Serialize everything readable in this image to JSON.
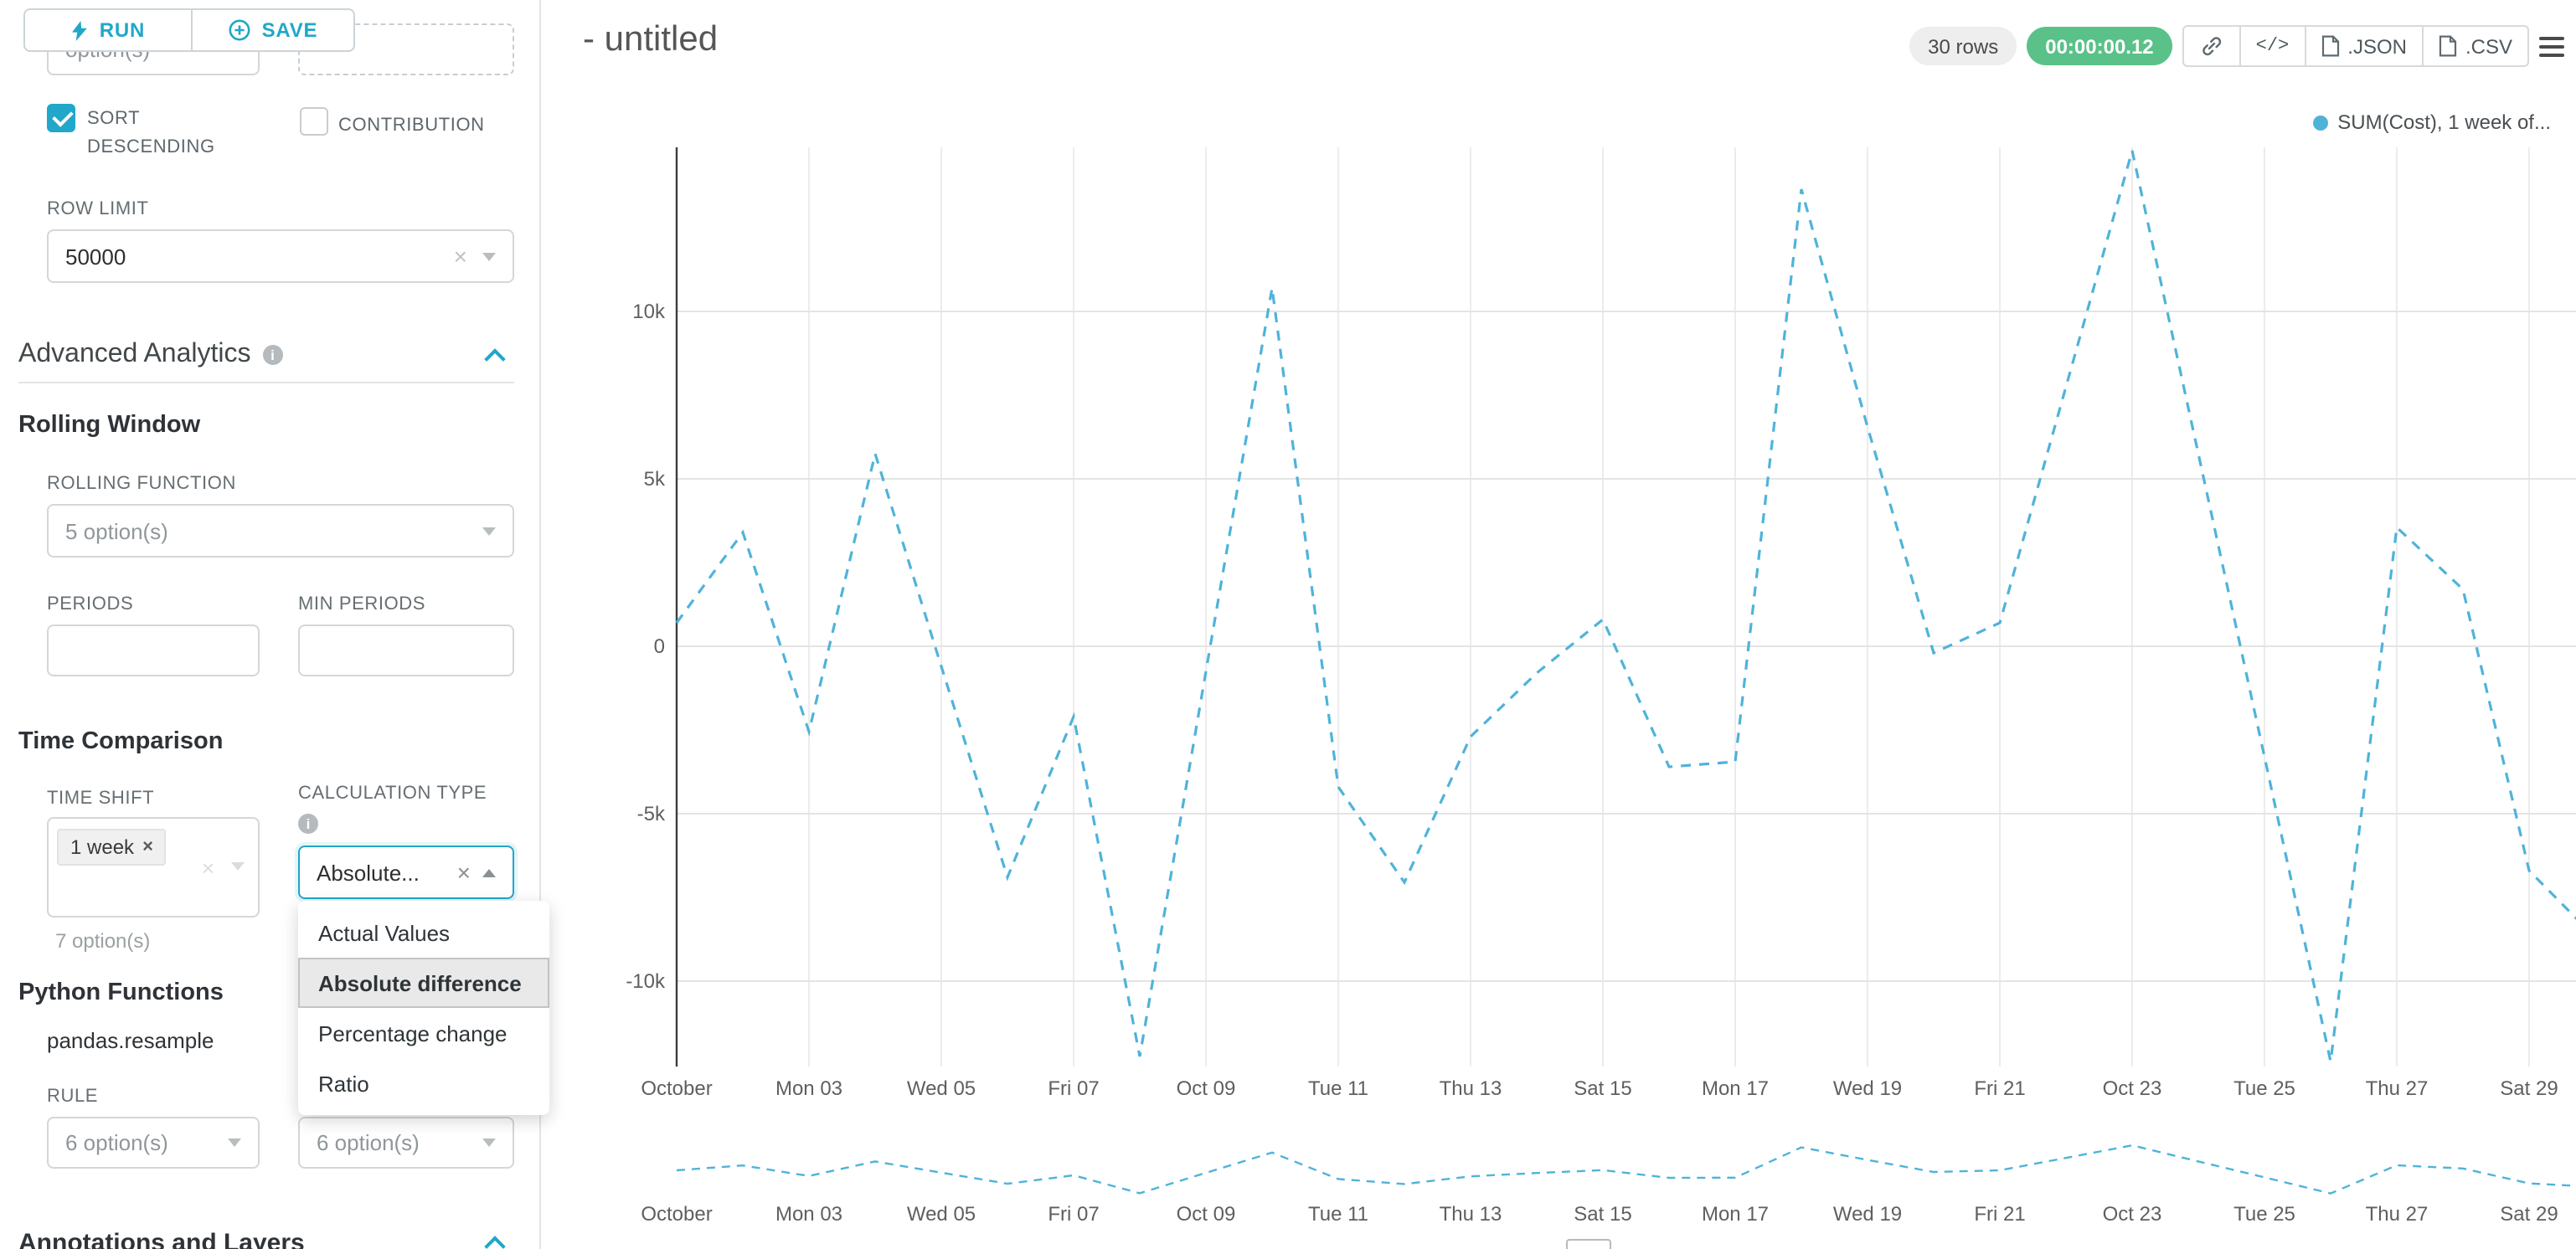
{
  "colors": {
    "accent": "#20a7c9",
    "line": "#4fb3d9",
    "timer_green": "#5ac189"
  },
  "sidebar": {
    "run_label": "RUN",
    "save_label": "SAVE",
    "partial_top_value": "option(s)",
    "sort_descending_label": "SORT DESCENDING",
    "contribution_label": "CONTRIBUTION",
    "row_limit": {
      "label": "ROW LIMIT",
      "value": "50000"
    },
    "advanced_analytics_title": "Advanced Analytics",
    "rolling_window": {
      "title": "Rolling Window",
      "rolling_function_label": "ROLLING FUNCTION",
      "rolling_function_placeholder": "5 option(s)",
      "periods_label": "PERIODS",
      "min_periods_label": "MIN PERIODS"
    },
    "time_comparison": {
      "title": "Time Comparison",
      "time_shift_label": "TIME SHIFT",
      "time_shift_tag": "1 week",
      "time_shift_helper": "7 option(s)",
      "calculation_type_label": "CALCULATION TYPE",
      "calculation_type_value": "Absolute...",
      "dropdown_options": [
        "Actual Values",
        "Absolute difference",
        "Percentage change",
        "Ratio"
      ],
      "dropdown_selected": "Absolute difference"
    },
    "python_functions": {
      "title": "Python Functions",
      "item": "pandas.resample",
      "rule_label": "RULE",
      "rule_placeholder_left": "6 option(s)",
      "rule_placeholder_right": "6 option(s)"
    },
    "annotations_title": "Annotations and Layers"
  },
  "header": {
    "title": "- untitled",
    "rows_badge": "30 rows",
    "timer_badge": "00:00:00.12",
    "json_label": ".JSON",
    "csv_label": ".CSV"
  },
  "chart_data": {
    "type": "line",
    "title": "",
    "legend": [
      {
        "label": "SUM(Cost), 1 week of...",
        "color": "#4fb3d9"
      }
    ],
    "series": [
      {
        "name": "SUM(Cost), 1 week of...",
        "dashed": true,
        "color": "#4fb3d9",
        "values": [
          700,
          3400,
          -2550,
          5750,
          -600,
          -6900,
          -2100,
          -12250,
          -750,
          10700,
          -4200,
          -7050,
          -2700,
          -800,
          800,
          -3600,
          -3450,
          13650,
          6550,
          -200,
          700,
          7750,
          14800,
          5750,
          -3300,
          -12400,
          3550,
          1700,
          -6700,
          -8700
        ]
      }
    ],
    "x_ticks": [
      "October",
      "Mon 03",
      "Wed 05",
      "Fri 07",
      "Oct 09",
      "Tue 11",
      "Thu 13",
      "Sat 15",
      "Mon 17",
      "Wed 19",
      "Fri 21",
      "Oct 23",
      "Tue 25",
      "Thu 27",
      "Sat 29"
    ],
    "x_tick_every_n_points": 2,
    "y_ticks": [
      {
        "label": "10k",
        "value": 10000
      },
      {
        "label": "5k",
        "value": 5000
      },
      {
        "label": "0",
        "value": 0
      },
      {
        "label": "-5k",
        "value": -5000
      },
      {
        "label": "-10k",
        "value": -10000
      }
    ],
    "ylim": [
      -12550,
      14900
    ],
    "grid": true,
    "legend_position": "top-right",
    "has_mini_preview_chart": true
  }
}
